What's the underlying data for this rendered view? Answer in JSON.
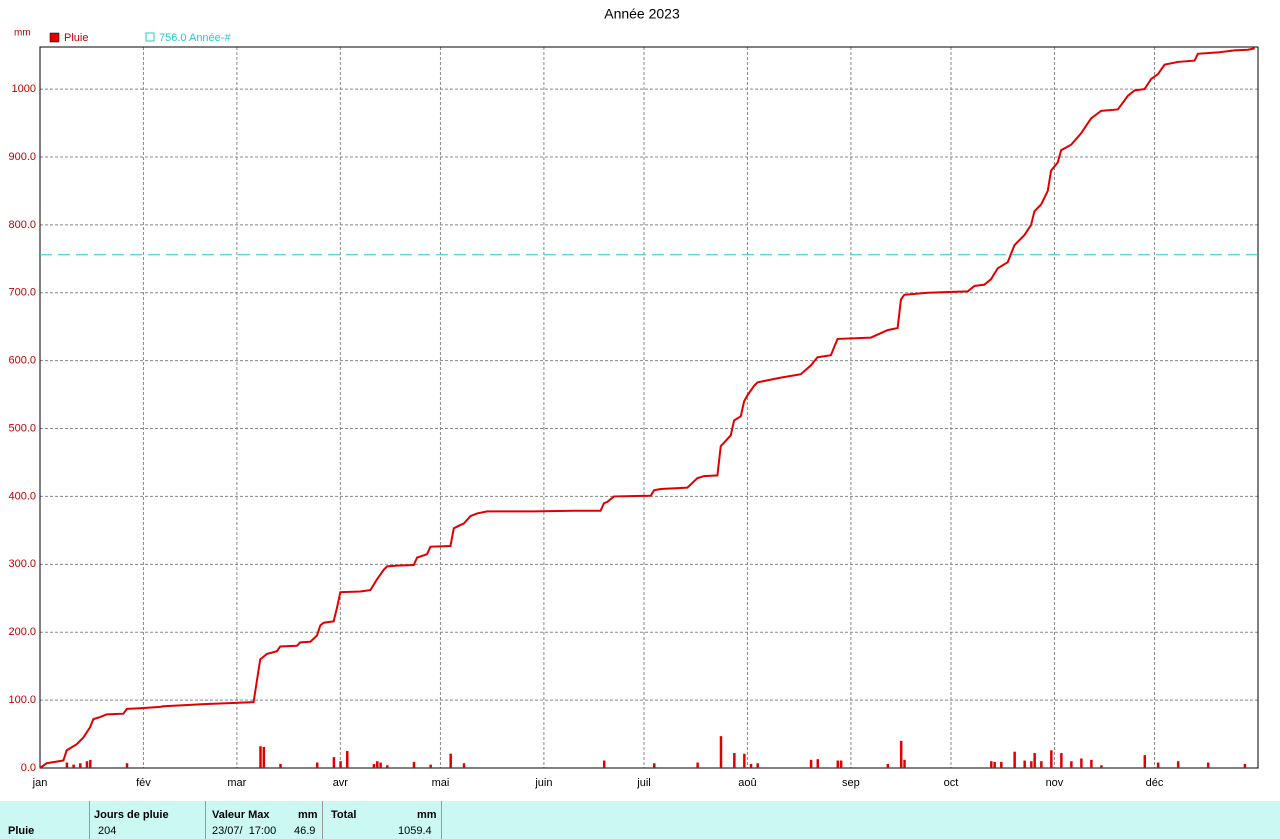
{
  "chart_data": {
    "type": "line",
    "title": "Année 2023",
    "y_label": "mm",
    "grid": true,
    "xlim": [
      0,
      365
    ],
    "ylim": [
      0,
      1062
    ],
    "xticks": [
      {
        "value": 0,
        "label": "jan"
      },
      {
        "value": 31,
        "label": "fév"
      },
      {
        "value": 59,
        "label": "mar"
      },
      {
        "value": 90,
        "label": "avr"
      },
      {
        "value": 120,
        "label": "mai"
      },
      {
        "value": 151,
        "label": "juin"
      },
      {
        "value": 181,
        "label": "juil"
      },
      {
        "value": 212,
        "label": "aoû"
      },
      {
        "value": 243,
        "label": "sep"
      },
      {
        "value": 273,
        "label": "oct"
      },
      {
        "value": 304,
        "label": "nov"
      },
      {
        "value": 334,
        "label": "déc"
      }
    ],
    "yticks": [
      {
        "value": 0,
        "label": "0.0"
      },
      {
        "value": 100,
        "label": "100.0"
      },
      {
        "value": 200,
        "label": "200.0"
      },
      {
        "value": 300,
        "label": "300.0"
      },
      {
        "value": 400,
        "label": "400.0"
      },
      {
        "value": 500,
        "label": "500.0"
      },
      {
        "value": 600,
        "label": "600.0"
      },
      {
        "value": 700,
        "label": "700.0"
      },
      {
        "value": 800,
        "label": "800.0"
      },
      {
        "value": 900,
        "label": "900.0"
      },
      1000
    ],
    "reference_line": {
      "value": 756,
      "label": "756.0 Année-#",
      "color": "#22cccc"
    },
    "series": [
      {
        "name": "Pluie",
        "color": "#e00000",
        "x": [
          0,
          2,
          7,
          8,
          11,
          13,
          15,
          16,
          18,
          20,
          25,
          26,
          30,
          36,
          37,
          45,
          49,
          54,
          64,
          66,
          68,
          71,
          72,
          77,
          78,
          81,
          83,
          84,
          85,
          88,
          89,
          90,
          96,
          99,
          101,
          103,
          104,
          107,
          112,
          113,
          116,
          117,
          123,
          124,
          126,
          127,
          129,
          131,
          134,
          148,
          160,
          168,
          169,
          170,
          172,
          183,
          184,
          186,
          194,
          197,
          199,
          203,
          204,
          207,
          208,
          210,
          211,
          212,
          214,
          215,
          222,
          228,
          231,
          233,
          237,
          239,
          249,
          254,
          257,
          258,
          259,
          266,
          278,
          280,
          283,
          285,
          287,
          290,
          292,
          295,
          297,
          298,
          300,
          302,
          303,
          305,
          306,
          309,
          312,
          315,
          318,
          323,
          326,
          328,
          331,
          333,
          335,
          337,
          341,
          346,
          347,
          353,
          358,
          362,
          364
        ],
        "values": [
          0,
          7,
          11,
          26,
          35,
          45,
          60,
          72,
          75,
          79,
          80,
          87,
          88,
          90,
          91,
          93,
          94,
          95,
          97,
          160,
          168,
          172,
          179,
          180,
          185,
          186,
          195,
          210,
          214,
          216,
          236,
          259,
          260,
          262,
          278,
          292,
          297,
          298,
          299,
          310,
          315,
          326,
          327,
          353,
          358,
          360,
          371,
          375,
          378,
          378,
          379,
          379,
          390,
          392,
          400,
          401,
          409,
          411,
          413,
          427,
          430,
          431,
          474,
          490,
          512,
          518,
          540,
          549,
          563,
          568,
          575,
          580,
          593,
          605,
          608,
          632,
          634,
          645,
          648,
          690,
          697,
          700,
          702,
          710,
          712,
          720,
          736,
          745,
          770,
          785,
          800,
          820,
          830,
          850,
          880,
          892,
          910,
          918,
          935,
          957,
          968,
          970,
          990,
          998,
          1000,
          1015,
          1022,
          1036,
          1040,
          1042,
          1052,
          1054,
          1057,
          1058,
          1060
        ],
        "daily_x": [
          8,
          10,
          12,
          14,
          15,
          26,
          66,
          67,
          72,
          83,
          88,
          90,
          92,
          100,
          101,
          102,
          104,
          112,
          117,
          123,
          127,
          169,
          184,
          197,
          204,
          208,
          211,
          213,
          215,
          231,
          233,
          239,
          240,
          254,
          258,
          259,
          285,
          286,
          288,
          292,
          295,
          297,
          298,
          300,
          303,
          306,
          309,
          312,
          315,
          318,
          331,
          335,
          341,
          350,
          361
        ],
        "daily_values": [
          8,
          5,
          7,
          10,
          12,
          7,
          32,
          31,
          6,
          8,
          16,
          10,
          25,
          6,
          10,
          8,
          4,
          9,
          5,
          21,
          7,
          11,
          7,
          8,
          46.9,
          22,
          21,
          6,
          7,
          12,
          13,
          11,
          11,
          6,
          40,
          12,
          10,
          9,
          9,
          24,
          11,
          10,
          22,
          10,
          26,
          22,
          10,
          14,
          12,
          4,
          19,
          8,
          10,
          8,
          6
        ]
      }
    ]
  },
  "table": {
    "headers": [
      "Jours de pluie",
      "Valeur Max",
      "mm",
      "Total",
      "mm"
    ],
    "row": {
      "label": "Pluie",
      "days": "204",
      "max_date": "23/07/  17:00",
      "max_value": "46.9",
      "total": "1059.4"
    }
  }
}
